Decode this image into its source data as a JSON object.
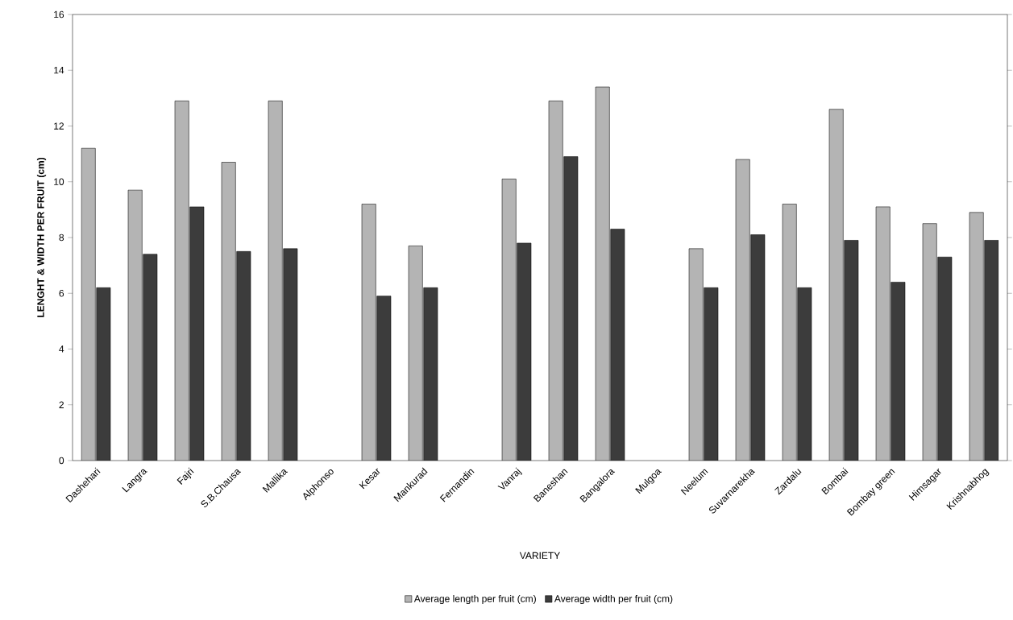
{
  "chart_data": {
    "type": "bar",
    "xlabel": "VARIETY",
    "ylabel": "LENGHT & WIDTH PER FRUIT (cm)",
    "categories": [
      "Dashehari",
      "Langra",
      "Fajri",
      "S.B.Chausa",
      "Mallika",
      "Alphonso",
      "Kesar",
      "Mankurad",
      "Fernandin",
      "Vanraj",
      "Baneshan",
      "Bangalora",
      "Mulgoa",
      "Neelum",
      "Suvarnarekha",
      "Zardalu",
      "Bombai",
      "Bombay green",
      "Himsagar",
      "Krishnabhog"
    ],
    "series": [
      {
        "name": "Average length per fruit (cm)",
        "color": "#b4b4b4",
        "values": [
          11.2,
          9.7,
          12.9,
          10.7,
          12.9,
          null,
          9.2,
          7.7,
          null,
          10.1,
          12.9,
          13.4,
          null,
          7.6,
          10.8,
          9.2,
          12.6,
          9.1,
          8.5,
          8.9
        ]
      },
      {
        "name": "Average width per fruit (cm)",
        "color": "#3c3c3c",
        "values": [
          6.2,
          7.4,
          9.1,
          7.5,
          7.6,
          null,
          5.9,
          6.2,
          null,
          7.8,
          10.9,
          8.3,
          null,
          6.2,
          8.1,
          6.2,
          7.9,
          6.4,
          7.3,
          7.9
        ]
      }
    ],
    "ylim": [
      0,
      16
    ],
    "yticks": [
      0,
      2,
      4,
      6,
      8,
      10,
      12,
      14,
      16
    ],
    "grid": false,
    "legend": "bottom"
  }
}
